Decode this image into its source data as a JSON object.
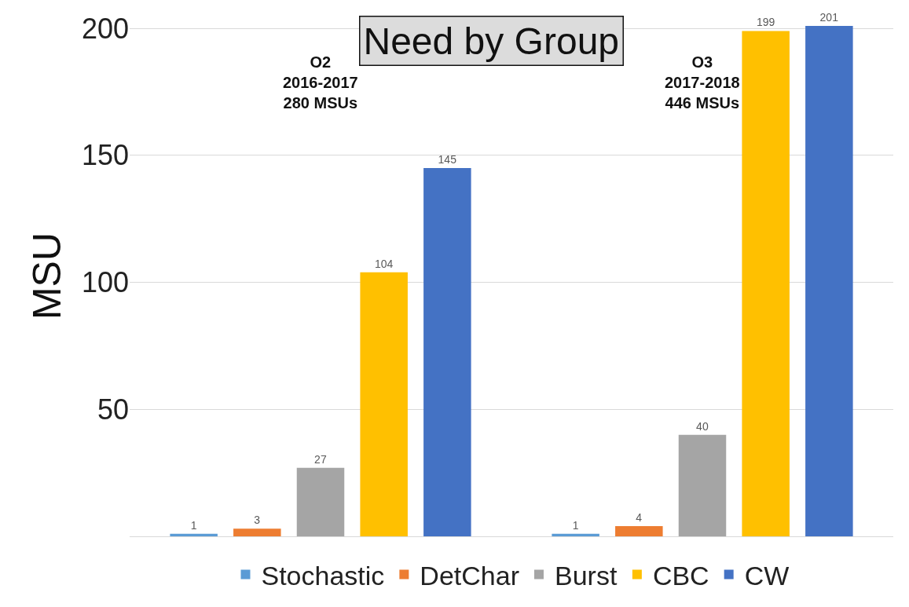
{
  "chart_data": {
    "type": "bar",
    "title": "Need by Group",
    "ylabel": "MSU",
    "categories": [
      null,
      null
    ],
    "series": [
      {
        "name": "Stochastic",
        "color": "#5b9bd5",
        "values": [
          1,
          1
        ]
      },
      {
        "name": "DetChar",
        "color": "#ed7d31",
        "values": [
          3,
          4
        ]
      },
      {
        "name": "Burst",
        "color": "#a5a5a5",
        "values": [
          27,
          40
        ]
      },
      {
        "name": "CBC",
        "color": "#ffc000",
        "values": [
          104,
          199
        ]
      },
      {
        "name": "CW",
        "color": "#4472c4",
        "values": [
          145,
          201
        ]
      }
    ],
    "annotations": [
      "O2\n2016-2017\n280 MSUs",
      "O3\n2017-2018\n446 MSUs"
    ],
    "ylim": [
      0,
      205
    ],
    "yticks": [
      50,
      100,
      150,
      200
    ],
    "grid": "y",
    "legend": "bottom",
    "data_labels": true
  }
}
